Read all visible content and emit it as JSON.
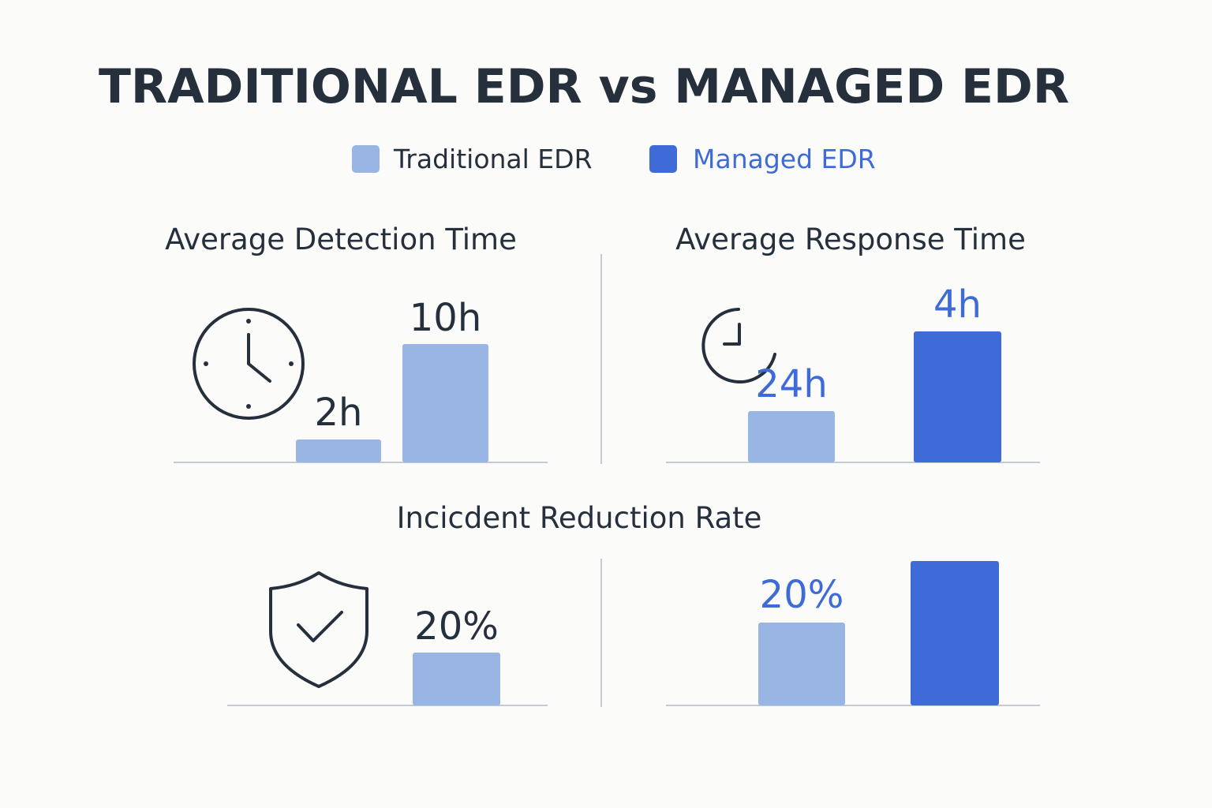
{
  "title": "TRADITIONAL EDR vs MANAGED EDR",
  "legend": [
    {
      "label": "Traditional EDR",
      "color": "#99b5e3",
      "text_color": "#26303d"
    },
    {
      "label": "Managed EDR",
      "color": "#3e6bd8",
      "text_color": "#3e6bd8"
    }
  ],
  "colors": {
    "traditional": "#99b5e3",
    "managed": "#3e6bd8",
    "text_dark": "#26303d",
    "text_blue": "#3e6bd8",
    "axis": "#c5c9d2"
  },
  "chart_data": [
    {
      "type": "bar",
      "title": "Average Detection Time",
      "icon": "clock-icon",
      "bars": [
        {
          "series": "Traditional EDR",
          "value": 2,
          "label": "2h"
        },
        {
          "series": "Traditional EDR",
          "value": 10,
          "label": "10h"
        }
      ],
      "ylim": [
        0,
        10
      ]
    },
    {
      "type": "bar",
      "title": "Average Response Time",
      "icon": "timer-icon",
      "bars": [
        {
          "series": "Traditional EDR",
          "value": 24,
          "label": "24h"
        },
        {
          "series": "Managed EDR",
          "value": 4,
          "label": "4h"
        }
      ]
    },
    {
      "type": "bar",
      "title": "Incicdent Reduction Rate",
      "icon": "shield-check-icon",
      "bars": [
        {
          "series": "Traditional EDR",
          "value": 20,
          "label": "20%"
        }
      ]
    },
    {
      "type": "bar",
      "title": "",
      "bars": [
        {
          "series": "Traditional EDR",
          "value": 20,
          "label": "20%"
        },
        {
          "series": "Managed EDR",
          "value": null,
          "label": ""
        }
      ]
    }
  ]
}
